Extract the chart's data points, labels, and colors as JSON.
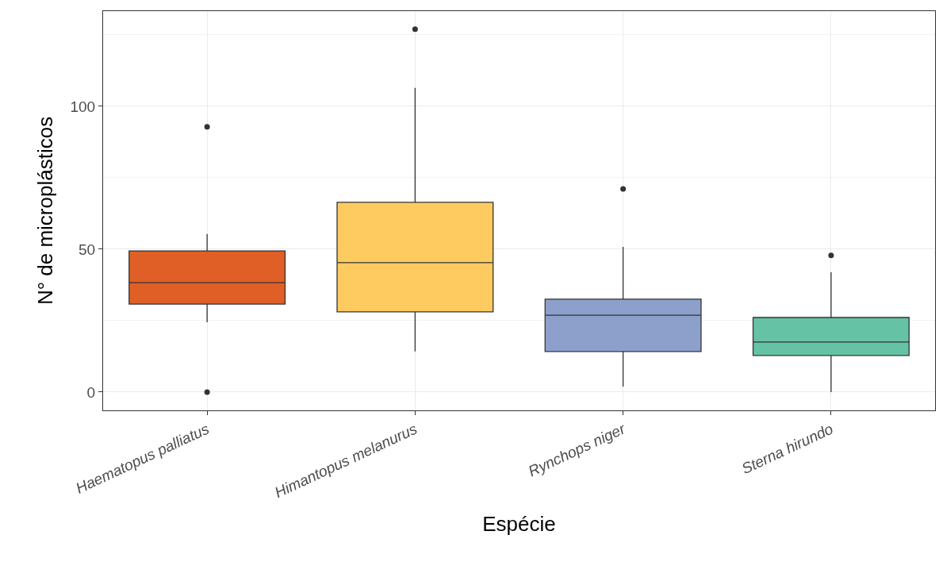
{
  "chart_data": {
    "type": "box",
    "xlabel": "Espécie",
    "ylabel": "N° de microplásticos",
    "categories": [
      "Haematopus palliatus",
      "Himantopus melanurus",
      "Rynchops niger",
      "Sterna hirundo"
    ],
    "colors": [
      "#e05f27",
      "#fdcb60",
      "#8da0cb",
      "#66c2a5"
    ],
    "boxes": [
      {
        "low": 24.4,
        "q1": 30.8,
        "median": 38.3,
        "q3": 49.4,
        "high": 55.3,
        "outliers": [
          92.8,
          0
        ]
      },
      {
        "low": 14.2,
        "q1": 28.1,
        "median": 45.3,
        "q3": 66.4,
        "high": 106.4,
        "outliers": [
          127
        ]
      },
      {
        "low": 1.9,
        "q1": 14.2,
        "median": 26.9,
        "q3": 32.5,
        "high": 50.8,
        "outliers": [
          71.1
        ]
      },
      {
        "low": 0,
        "q1": 12.8,
        "median": 17.5,
        "q3": 26.1,
        "high": 41.9,
        "outliers": [
          47.8
        ]
      }
    ],
    "ylim": [
      -6.4,
      133.3
    ],
    "yticks": [
      0,
      50,
      100
    ],
    "grid": true
  }
}
